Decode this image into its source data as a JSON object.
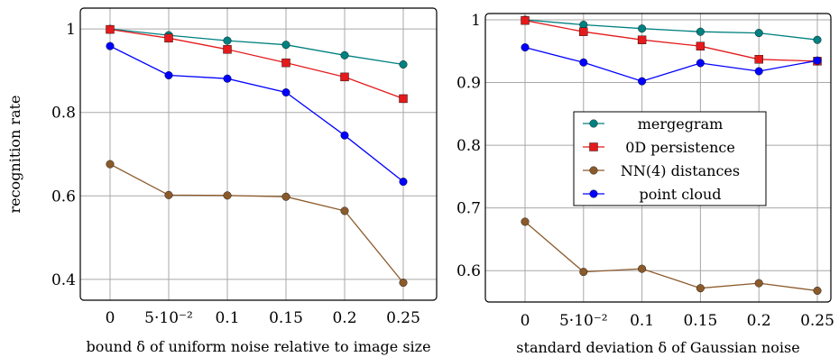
{
  "chart_data": [
    {
      "type": "line",
      "title": "",
      "xlabel": "bound δ of uniform noise relative to image size",
      "ylabel": "recognition rate",
      "categories": [
        "0",
        "5·10⁻²",
        "0.1",
        "0.15",
        "0.2",
        "0.25"
      ],
      "x": [
        0,
        0.05,
        0.1,
        0.15,
        0.2,
        0.25
      ],
      "ylim": [
        0.35,
        1.05
      ],
      "yticks": [
        0.4,
        0.6,
        0.8,
        1
      ],
      "ytick_labels": [
        "0.4",
        "0.6",
        "0.8",
        "1"
      ],
      "grid": true,
      "legend": "none",
      "series": [
        {
          "name": "mergegram",
          "color": "#008080",
          "marker": "circle",
          "values": [
            1.0,
            0.985,
            0.972,
            0.962,
            0.937,
            0.915
          ]
        },
        {
          "name": "0D persistence",
          "color": "#e41a1c",
          "marker": "square",
          "values": [
            0.999,
            0.978,
            0.951,
            0.919,
            0.885,
            0.833
          ]
        },
        {
          "name": "NN(4) distances",
          "color": "#8b5a2b",
          "marker": "circle",
          "values": [
            0.676,
            0.602,
            0.601,
            0.598,
            0.564,
            0.392
          ]
        },
        {
          "name": "point cloud",
          "color": "#0000ff",
          "marker": "circle",
          "values": [
            0.959,
            0.889,
            0.881,
            0.848,
            0.745,
            0.634
          ]
        }
      ]
    },
    {
      "type": "line",
      "title": "",
      "xlabel": "standard deviation δ of Gaussian noise",
      "ylabel": "",
      "categories": [
        "0",
        "5·10⁻²",
        "0.1",
        "0.15",
        "0.2",
        "0.25"
      ],
      "x": [
        0,
        0.05,
        0.1,
        0.15,
        0.2,
        0.25
      ],
      "ylim": [
        0.55,
        1.01
      ],
      "yticks": [
        0.6,
        0.7,
        0.8,
        0.9,
        1
      ],
      "ytick_labels": [
        "0.6",
        "0.7",
        "0.8",
        "0.9",
        "1"
      ],
      "grid": true,
      "legend": "center",
      "series": [
        {
          "name": "mergegram",
          "color": "#008080",
          "marker": "circle",
          "values": [
            1.0,
            0.992,
            0.986,
            0.981,
            0.979,
            0.968
          ]
        },
        {
          "name": "0D persistence",
          "color": "#e41a1c",
          "marker": "square",
          "values": [
            0.999,
            0.981,
            0.968,
            0.958,
            0.937,
            0.934
          ]
        },
        {
          "name": "NN(4) distances",
          "color": "#8b5a2b",
          "marker": "circle",
          "values": [
            0.678,
            0.598,
            0.603,
            0.572,
            0.58,
            0.568
          ]
        },
        {
          "name": "point cloud",
          "color": "#0000ff",
          "marker": "circle",
          "values": [
            0.956,
            0.932,
            0.902,
            0.931,
            0.918,
            0.935
          ]
        }
      ]
    }
  ]
}
